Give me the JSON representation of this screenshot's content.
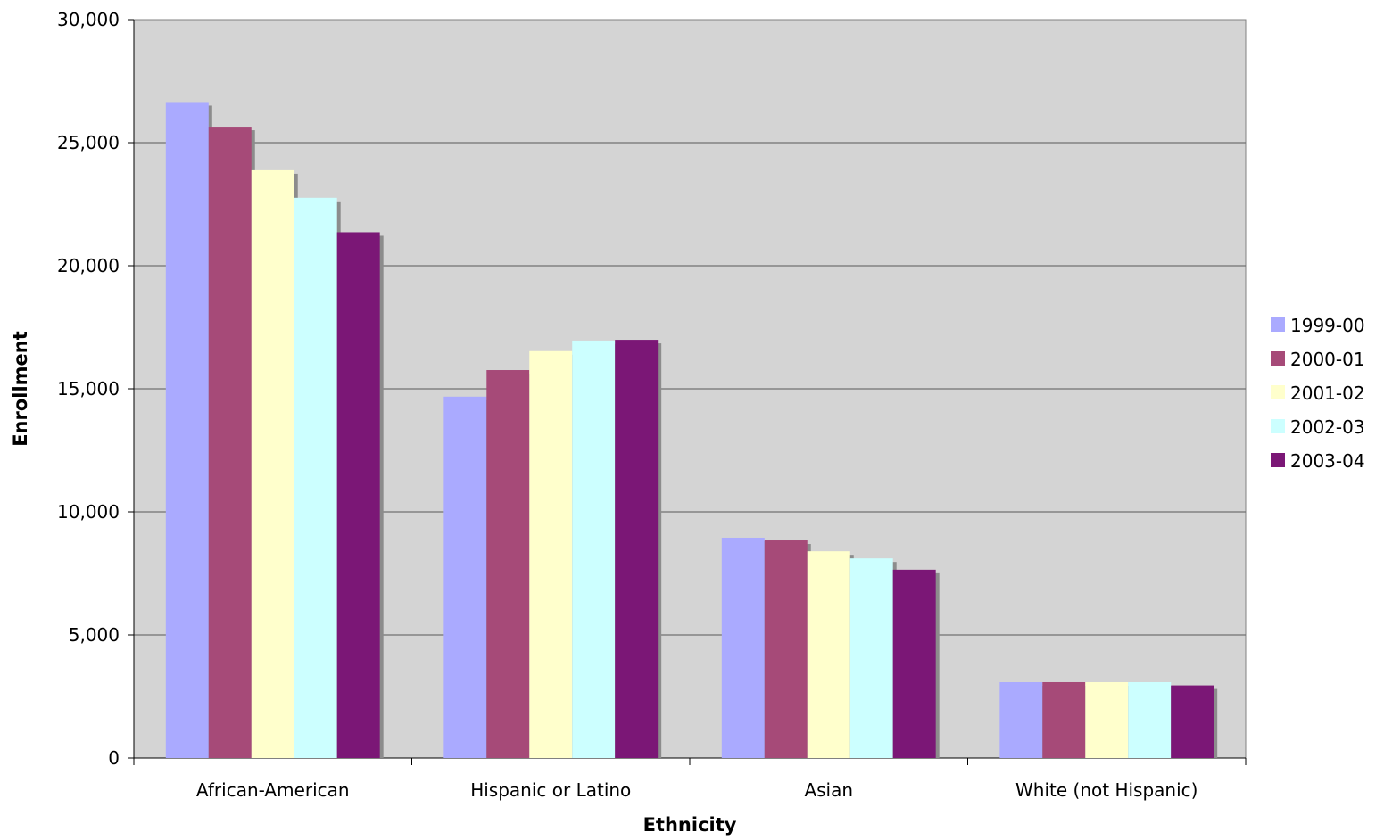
{
  "chart_data": {
    "type": "bar",
    "title": "",
    "xlabel": "Ethnicity",
    "ylabel": "Enrollment",
    "categories": [
      "African-American",
      "Hispanic or Latino",
      "Asian",
      "White (not Hispanic)"
    ],
    "series": [
      {
        "name": "1999-00",
        "color": "#aaaaff",
        "values": [
          26650,
          14680,
          8950,
          3080
        ]
      },
      {
        "name": "2000-01",
        "color": "#a64a78",
        "values": [
          25650,
          15760,
          8840,
          3080
        ]
      },
      {
        "name": "2001-02",
        "color": "#ffffcc",
        "values": [
          23880,
          16530,
          8400,
          3080
        ]
      },
      {
        "name": "2002-03",
        "color": "#ccffff",
        "values": [
          22760,
          16960,
          8110,
          3080
        ]
      },
      {
        "name": "2003-04",
        "color": "#7b1776",
        "values": [
          21360,
          16990,
          7650,
          2950
        ]
      }
    ],
    "ylim": [
      0,
      30000
    ],
    "yticks": [
      0,
      5000,
      10000,
      15000,
      20000,
      25000,
      30000
    ],
    "ytick_labels": [
      "0",
      "5,000",
      "10,000",
      "15,000",
      "20,000",
      "25,000",
      "30,000"
    ],
    "grid": true,
    "plot_background": "#d4d4d4",
    "legend_position": "right"
  }
}
